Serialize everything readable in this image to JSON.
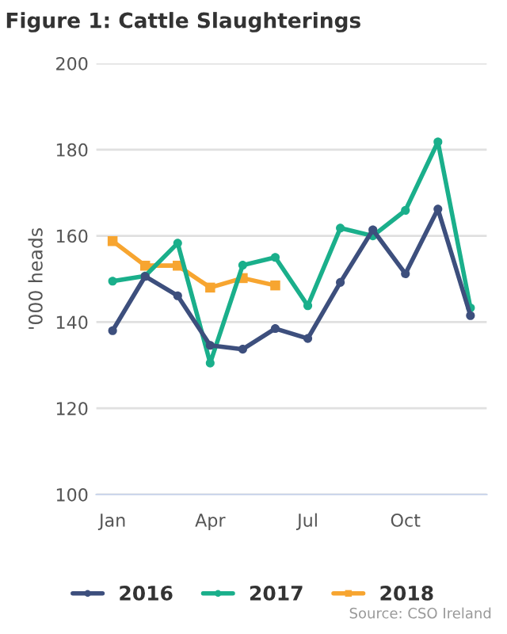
{
  "chart_data": {
    "type": "line",
    "title": "Figure 1: Cattle Slaughterings",
    "ylabel": "'000 heads",
    "categories": [
      "Jan",
      null,
      null,
      "Apr",
      null,
      null,
      "Jul",
      null,
      null,
      "Oct",
      null,
      null
    ],
    "series": [
      {
        "name": "2016",
        "color": "#3d4f7d",
        "marker": "circle",
        "values": [
          138.0,
          150.6,
          146.1,
          134.6,
          133.7,
          138.5,
          136.2,
          149.2,
          161.4,
          151.2,
          166.2,
          141.5
        ]
      },
      {
        "name": "2017",
        "color": "#1aaf8b",
        "marker": "circle",
        "values": [
          149.5,
          150.7,
          158.3,
          130.5,
          153.2,
          155.0,
          143.8,
          161.8,
          160.0,
          165.9,
          181.8,
          143.3
        ]
      },
      {
        "name": "2018",
        "color": "#f7a530",
        "marker": "square",
        "values": [
          158.8,
          153.1,
          153.1,
          148.0,
          150.2,
          148.5,
          null,
          null,
          null,
          null,
          null,
          null
        ]
      }
    ],
    "ylim": [
      100,
      200
    ],
    "yticks": [
      100,
      120,
      140,
      160,
      180,
      200
    ],
    "grid": "y",
    "legend": "bottom",
    "line_style": "solid",
    "annotations": [
      "Source: CSO Ireland"
    ]
  }
}
